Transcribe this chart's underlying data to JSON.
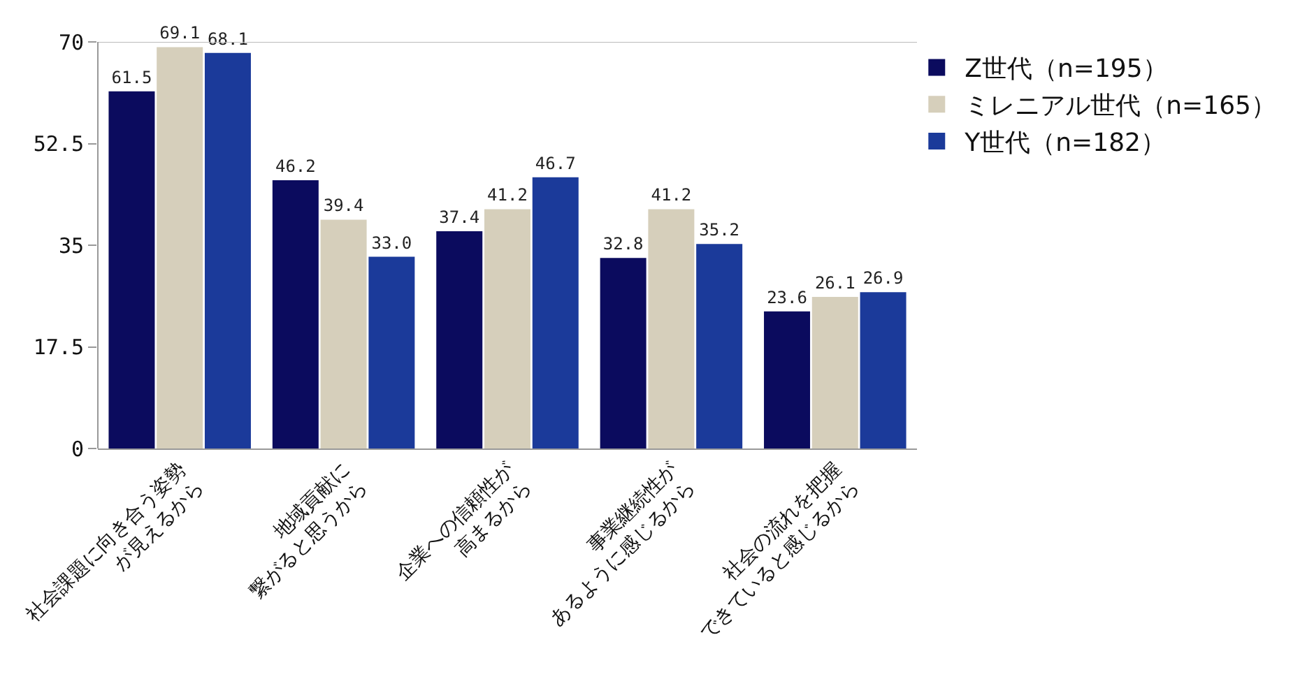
{
  "chart_data": {
    "type": "bar",
    "categories": [
      "社会課題に向き合う姿勢\nが見えるから",
      "地域貢献に\n繋がると思うから",
      "企業への信頼性が\n高まるから",
      "事業継続性が\nあるように感じるから",
      "社会の流れを把握\nできていると感じるから"
    ],
    "series": [
      {
        "name": "Z世代（n=195）",
        "color": "#0b0b5e",
        "values": [
          61.5,
          46.2,
          37.4,
          32.8,
          23.6
        ],
        "value_labels": [
          "61.5",
          "46.2",
          "37.4",
          "32.8",
          "23.6"
        ]
      },
      {
        "name": "ミレニアル世代（n=165）",
        "color": "#d6cfbb",
        "values": [
          69.1,
          39.4,
          41.2,
          41.2,
          26.1
        ],
        "value_labels": [
          "69.1",
          "39.4",
          "41.2",
          "41.2",
          "26.1"
        ]
      },
      {
        "name": "Y世代（n=182）",
        "color": "#1b3a9a",
        "values": [
          68.1,
          33.0,
          46.7,
          35.2,
          26.9
        ],
        "value_labels": [
          "68.1",
          "33.0",
          "46.7",
          "35.2",
          "26.9"
        ]
      }
    ],
    "ylim": [
      0,
      70
    ],
    "yticks": [
      0,
      17.5,
      35,
      52.5,
      70
    ],
    "grid": false,
    "legend": "top right"
  }
}
